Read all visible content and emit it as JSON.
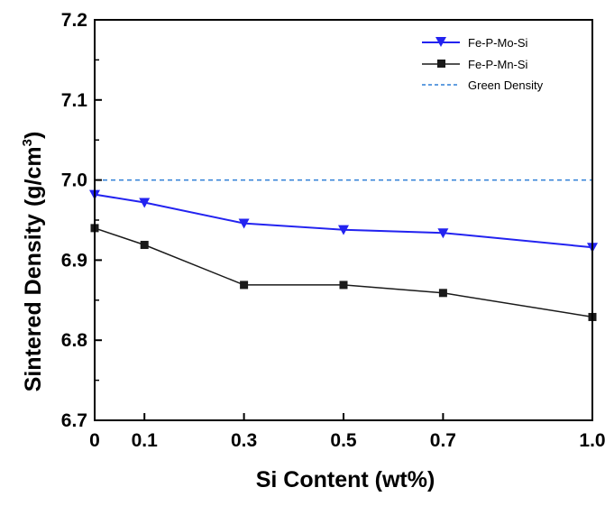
{
  "chart_data": {
    "type": "line",
    "xlabel": "Si Content (wt%)",
    "ylabel_main": "Sintered Density",
    "ylabel_unit": "(g/cm",
    "ylabel_sup": "3",
    "ylabel_close": ")",
    "xlim": [
      0,
      1.0
    ],
    "ylim": [
      6.7,
      7.2
    ],
    "x_ticks": [
      0,
      0.1,
      0.3,
      0.5,
      0.7,
      1.0
    ],
    "x_tick_labels": [
      "0",
      "0.1",
      "0.3",
      "0.5",
      "0.7",
      "1.0"
    ],
    "y_ticks": [
      6.7,
      6.8,
      6.9,
      7.0,
      7.1,
      7.2
    ],
    "y_tick_labels": [
      "6.7",
      "6.8",
      "6.9",
      "7.0",
      "7.1",
      "7.2"
    ],
    "grid": false,
    "legend_position": "top-right",
    "series": [
      {
        "name": "Fe-P-Mo-Si",
        "marker": "triangle-down",
        "color": "#2323f0",
        "x": [
          0,
          0.1,
          0.3,
          0.5,
          0.7,
          1.0
        ],
        "y": [
          6.982,
          6.972,
          6.946,
          6.938,
          6.934,
          6.916
        ]
      },
      {
        "name": "Fe-P-Mn-Si",
        "marker": "square",
        "color": "#1a1a1a",
        "x": [
          0,
          0.1,
          0.3,
          0.5,
          0.7,
          1.0
        ],
        "y": [
          6.94,
          6.919,
          6.869,
          6.869,
          6.859,
          6.829
        ]
      }
    ],
    "reference_line": {
      "name": "Green Density",
      "y": 7.0,
      "style": "dashed",
      "color": "#2e7fd6"
    }
  }
}
